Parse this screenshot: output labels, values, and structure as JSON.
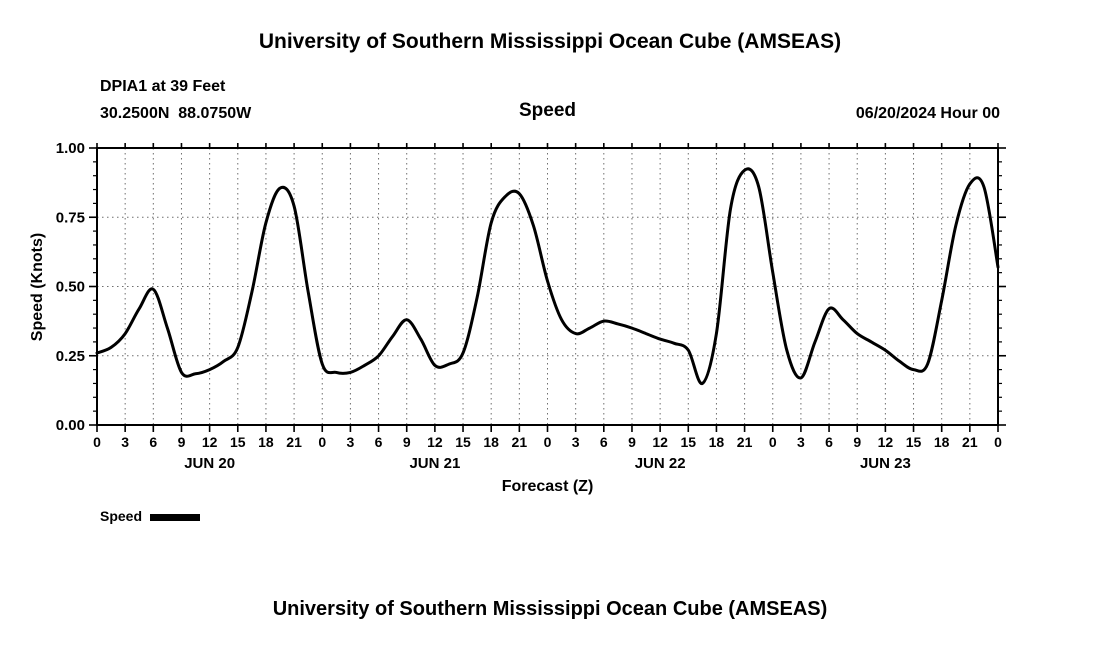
{
  "page": {
    "title": "University of Southern Mississippi Ocean Cube (AMSEAS)",
    "next_chart_title": "University of Southern Mississippi Ocean Cube (AMSEAS)"
  },
  "header": {
    "station": "DPIA1 at 39 Feet",
    "coordinates": "30.2500N  88.0750W",
    "variable": "Speed",
    "run_time": "06/20/2024 Hour 00"
  },
  "legend": {
    "label": "Speed"
  },
  "chart_data": {
    "type": "line",
    "title": "Speed",
    "xlabel": "Forecast (Z)",
    "ylabel": "Speed (Knots)",
    "xlim": [
      0,
      96
    ],
    "ylim": [
      0,
      1.0
    ],
    "grid": {
      "on": true,
      "style": "dotted",
      "x_step_hours": 3,
      "y_values": [
        0.25,
        0.5,
        0.75
      ]
    },
    "y_tick_values": [
      0,
      0.25,
      0.5,
      0.75,
      1.0
    ],
    "y_tick_labels": [
      "0.00",
      "0.25",
      "0.50",
      "0.75",
      "1.00"
    ],
    "y_minor_tick_step": 0.05,
    "x_tick_hours": [
      0,
      3,
      6,
      9,
      12,
      15,
      18,
      21,
      24,
      27,
      30,
      33,
      36,
      39,
      42,
      45,
      48,
      51,
      54,
      57,
      60,
      63,
      66,
      69,
      72,
      75,
      78,
      81,
      84,
      87,
      90,
      93,
      96
    ],
    "x_tick_labels": [
      "0",
      "3",
      "6",
      "9",
      "12",
      "15",
      "18",
      "21",
      "0",
      "3",
      "6",
      "9",
      "12",
      "15",
      "18",
      "21",
      "0",
      "3",
      "6",
      "9",
      "12",
      "15",
      "18",
      "21",
      "0",
      "3",
      "6",
      "9",
      "12",
      "15",
      "18",
      "21",
      "0"
    ],
    "day_labels": [
      {
        "label": "JUN 20",
        "center_hour": 12
      },
      {
        "label": "JUN 21",
        "center_hour": 36
      },
      {
        "label": "JUN 22",
        "center_hour": 60
      },
      {
        "label": "JUN 23",
        "center_hour": 84
      }
    ],
    "legend_position": "below-left",
    "series": [
      {
        "name": "Speed",
        "color": "#000000",
        "x_hours": [
          0,
          1.5,
          3,
          4.5,
          6,
          7.5,
          9,
          10.5,
          12,
          13.5,
          15,
          16.5,
          18,
          19.5,
          21,
          22.5,
          24,
          25.5,
          27,
          28.5,
          30,
          31.5,
          33,
          34.5,
          36,
          37.5,
          39,
          40.5,
          42,
          43.5,
          45,
          46.5,
          48,
          49.5,
          51,
          52.5,
          54,
          55.5,
          57,
          58.5,
          60,
          61.5,
          63,
          64.5,
          66,
          67.5,
          69,
          70.5,
          72,
          73.5,
          75,
          76.5,
          78,
          79.5,
          81,
          82.5,
          84,
          85.5,
          87,
          88.5,
          90,
          91.5,
          93,
          94.5,
          96
        ],
        "values": [
          0.26,
          0.28,
          0.33,
          0.42,
          0.49,
          0.35,
          0.19,
          0.185,
          0.2,
          0.23,
          0.28,
          0.48,
          0.73,
          0.855,
          0.79,
          0.48,
          0.22,
          0.19,
          0.19,
          0.215,
          0.25,
          0.32,
          0.38,
          0.31,
          0.215,
          0.22,
          0.26,
          0.46,
          0.73,
          0.825,
          0.835,
          0.72,
          0.52,
          0.38,
          0.33,
          0.35,
          0.375,
          0.365,
          0.35,
          0.33,
          0.31,
          0.295,
          0.27,
          0.15,
          0.33,
          0.78,
          0.92,
          0.86,
          0.55,
          0.27,
          0.17,
          0.3,
          0.42,
          0.38,
          0.33,
          0.3,
          0.27,
          0.23,
          0.2,
          0.22,
          0.45,
          0.72,
          0.87,
          0.86,
          0.57
        ]
      }
    ]
  }
}
